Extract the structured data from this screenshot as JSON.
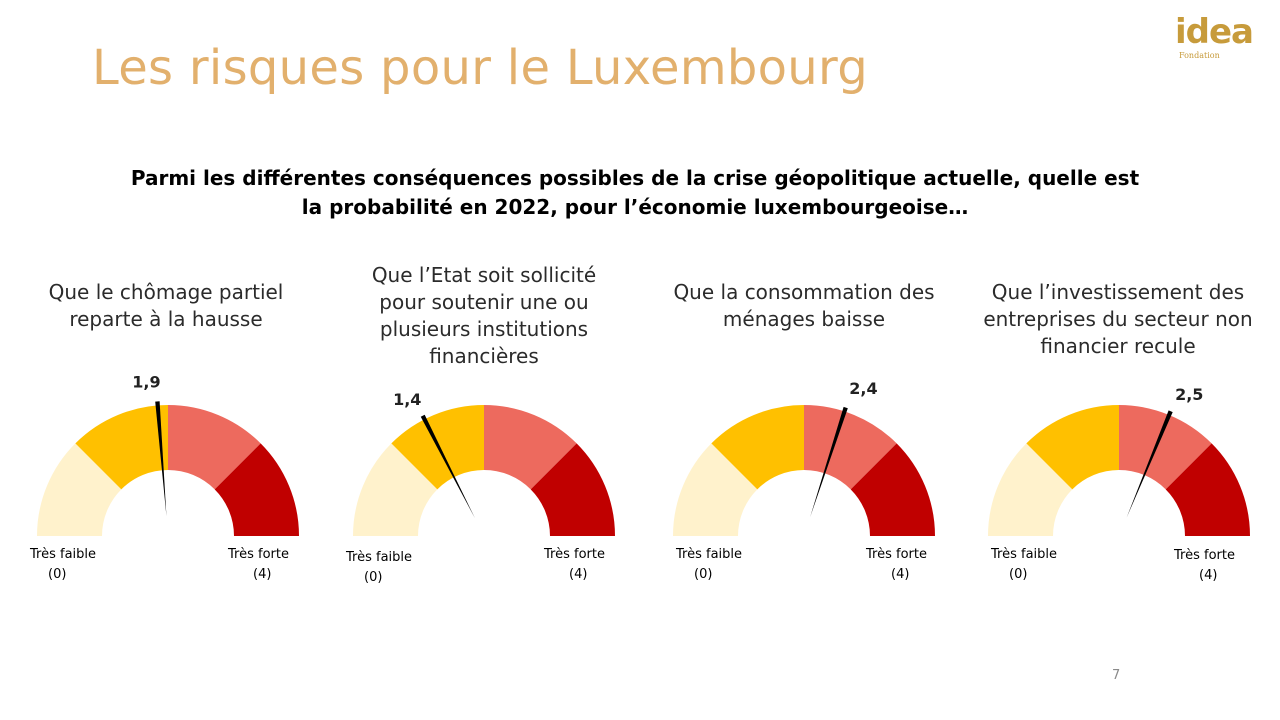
{
  "title": "Les risques pour le Luxembourg",
  "logo": {
    "word": "idea",
    "sub": "Fondation"
  },
  "question": {
    "line1": "Parmi les différentes conséquences possibles de la crise géopolitique actuelle, quelle est",
    "line2": "la probabilité en 2022, pour l’économie luxembourgeoise…"
  },
  "page_number": "7",
  "colors": {
    "title": "#E2B06D",
    "zone_very_low": "#FFF2CC",
    "zone_low": "#FFC000",
    "zone_high": "#ED6A5E",
    "zone_very_high": "#C00000",
    "needle": "#000000"
  },
  "gauges": [
    {
      "label_lines": [
        "Que le chômage partiel",
        "reparte à la hausse"
      ],
      "value_label": "1,9",
      "min_label": "Très faible",
      "min_value": "(0)",
      "max_label": "Très forte",
      "max_value": "(4)"
    },
    {
      "label_lines": [
        "Que l’Etat soit sollicité",
        "pour soutenir une ou",
        "plusieurs institutions",
        "financières"
      ],
      "value_label": "1,4",
      "min_label": "Très faible",
      "min_value": "(0)",
      "max_label": "Très forte",
      "max_value": "(4)"
    },
    {
      "label_lines": [
        "Que la consommation des",
        "ménages baisse"
      ],
      "value_label": "2,4",
      "min_label": "Très faible",
      "min_value": "(0)",
      "max_label": "Très forte",
      "max_value": "(4)"
    },
    {
      "label_lines": [
        "Que l’investissement des",
        "entreprises du secteur non",
        "financier recule"
      ],
      "value_label": "2,5",
      "min_label": "Très faible",
      "min_value": "(0)",
      "max_label": "Très forte",
      "max_value": "(4)"
    }
  ],
  "chart_data": {
    "type": "gauge",
    "scale": {
      "min": 0,
      "max": 4,
      "min_label": "Très faible",
      "max_label": "Très forte"
    },
    "zones": [
      {
        "from": 0,
        "to": 1,
        "color": "#FFF2CC"
      },
      {
        "from": 1,
        "to": 2,
        "color": "#FFC000"
      },
      {
        "from": 2,
        "to": 3,
        "color": "#ED6A5E"
      },
      {
        "from": 3,
        "to": 4,
        "color": "#C00000"
      }
    ],
    "values": [
      1.9,
      1.4,
      2.4,
      2.5
    ]
  }
}
